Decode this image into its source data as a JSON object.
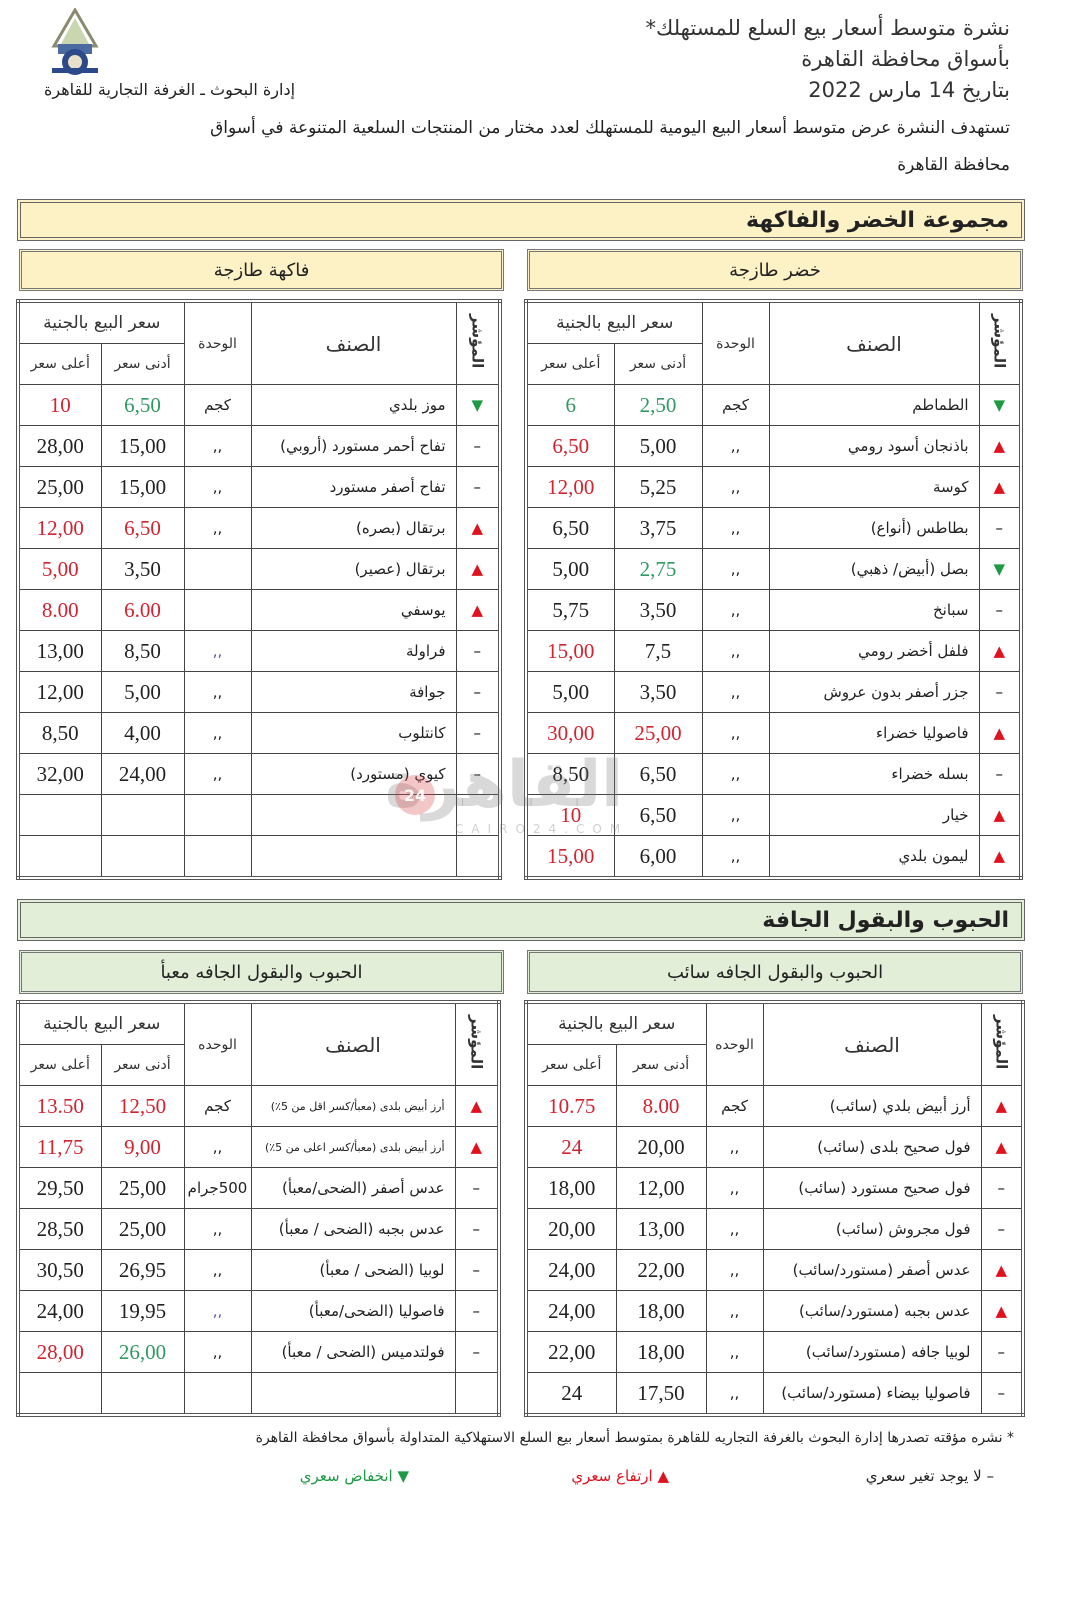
{
  "header": {
    "title_line1": "نشرة متوسط أسعار بيع السلع للمستهلك*",
    "title_line2": "بأسواق محافظة القاهرة",
    "date_line": "بتاريخ 14 مارس 2022",
    "department": "إدارة البحوث ـ الغرفة التجارية للقاهرة",
    "intro_line1": "تستهدف النشرة عرض متوسط أسعار البيع اليومية للمستهلك لعدد مختار من المنتجات السلعية المتنوعة في أسواق",
    "intro_line2": "محافظة القاهرة"
  },
  "colors": {
    "up": "#e0121e",
    "down": "#1e9a44",
    "section1_bg": "#fdf1c6",
    "section2_bg": "#e3eed8"
  },
  "headers": {
    "indicator": "المؤشر",
    "item": "الصنف",
    "unit": "الوحدة",
    "unit_alt": "الوحده",
    "price": "سعر البيع بالجنية",
    "min": "أدنى سعر",
    "max": "أعلى سعر"
  },
  "section1": {
    "title": "مجموعة الخضر والفاكهة",
    "vegetables": {
      "title": "خضر طازجة",
      "rows": [
        {
          "ind": "down",
          "name": "الطماطم",
          "unit": "كجم",
          "min": "2,50",
          "min_c": "green",
          "max": "6",
          "max_c": "green"
        },
        {
          "ind": "up",
          "name": "باذنجان أسود رومي",
          "unit": ",,",
          "min": "5,00",
          "min_c": "black",
          "max": "6,50",
          "max_c": "red"
        },
        {
          "ind": "up",
          "name": "كوسة",
          "unit": ",,",
          "min": "5,25",
          "min_c": "black",
          "max": "12,00",
          "max_c": "red"
        },
        {
          "ind": "none",
          "name": "بطاطس (أنواع)",
          "unit": ",,",
          "min": "3,75",
          "min_c": "black",
          "max": "6,50",
          "max_c": "black"
        },
        {
          "ind": "down",
          "name": "بصل (أبيض/ ذهبي)",
          "unit": ",,",
          "min": "2,75",
          "min_c": "green",
          "max": "5,00",
          "max_c": "black"
        },
        {
          "ind": "none",
          "name": "سبانخ",
          "unit": ",,",
          "min": "3,50",
          "min_c": "black",
          "max": "5,75",
          "max_c": "black"
        },
        {
          "ind": "up",
          "name": "فلفل أخضر رومي",
          "unit": ",,",
          "min": "7,5",
          "min_c": "black",
          "max": "15,00",
          "max_c": "red"
        },
        {
          "ind": "none",
          "name": "جزر أصفر بدون عروش",
          "unit": ",,",
          "min": "3,50",
          "min_c": "black",
          "max": "5,00",
          "max_c": "black"
        },
        {
          "ind": "up",
          "name": "فاصوليا خضراء",
          "unit": ",,",
          "min": "25,00",
          "min_c": "red",
          "max": "30,00",
          "max_c": "red"
        },
        {
          "ind": "none",
          "name": "بسله خضراء",
          "unit": ",,",
          "min": "6,50",
          "min_c": "black",
          "max": "8,50",
          "max_c": "black"
        },
        {
          "ind": "up",
          "name": "خيار",
          "unit": ",,",
          "min": "6,50",
          "min_c": "black",
          "max": "10",
          "max_c": "red"
        },
        {
          "ind": "up",
          "name": "ليمون بلدي",
          "unit": ",,",
          "min": "6,00",
          "min_c": "black",
          "max": "15,00",
          "max_c": "red"
        }
      ]
    },
    "fruits": {
      "title": "فاكهة طازجة",
      "rows": [
        {
          "ind": "down",
          "name": "موز بلدي",
          "unit": "كجم",
          "min": "6,50",
          "min_c": "green",
          "max": "10",
          "max_c": "red"
        },
        {
          "ind": "none",
          "name": "تفاح أحمر مستورد (أروبي)",
          "unit": ",,",
          "min": "15,00",
          "min_c": "black",
          "max": "28,00",
          "max_c": "black"
        },
        {
          "ind": "none",
          "name": "تفاح أصفر مستورد",
          "unit": ",,",
          "min": "15,00",
          "min_c": "black",
          "max": "25,00",
          "max_c": "black"
        },
        {
          "ind": "up",
          "name": "برتقال (بصره)",
          "unit": ",,",
          "min": "6,50",
          "min_c": "red",
          "max": "12,00",
          "max_c": "red"
        },
        {
          "ind": "up",
          "name": "برتقال (عصير)",
          "unit": "",
          "min": "3,50",
          "min_c": "black",
          "max": "5,00",
          "max_c": "red"
        },
        {
          "ind": "up",
          "name": "يوسفي",
          "unit": "",
          "min": "6.00",
          "min_c": "red",
          "max": "8.00",
          "max_c": "red"
        },
        {
          "ind": "none",
          "name": "فراولة",
          "unit": ",,",
          "unit_c": "purple",
          "min": "8,50",
          "min_c": "black",
          "max": "13,00",
          "max_c": "black"
        },
        {
          "ind": "none",
          "name": "جوافة",
          "unit": ",,",
          "min": "5,00",
          "min_c": "black",
          "max": "12,00",
          "max_c": "black"
        },
        {
          "ind": "none",
          "name": "كانتلوب",
          "unit": ",,",
          "min": "4,00",
          "min_c": "black",
          "max": "8,50",
          "max_c": "black"
        },
        {
          "ind": "none",
          "name": "كيوي (مستورد)",
          "unit": ",,",
          "min": "24,00",
          "min_c": "black",
          "max": "32,00",
          "max_c": "black"
        },
        {
          "empty": true
        },
        {
          "empty": true
        }
      ]
    }
  },
  "section2": {
    "title": "الحبوب والبقول الجافة",
    "bulk": {
      "title": "الحبوب والبقول الجافه سائب",
      "rows": [
        {
          "ind": "up",
          "name": "أرز أبيض بلدي (سائب)",
          "unit": "كجم",
          "min": "8.00",
          "min_c": "red",
          "max": "10.75",
          "max_c": "red"
        },
        {
          "ind": "up",
          "name": "فول صحيح بلدى (سائب)",
          "unit": ",,",
          "min": "20,00",
          "min_c": "black",
          "max": "24",
          "max_c": "red"
        },
        {
          "ind": "none",
          "name": "فول صحيح مستورد (سائب)",
          "unit": ",,",
          "min": "12,00",
          "min_c": "black",
          "max": "18,00",
          "max_c": "black"
        },
        {
          "ind": "none",
          "name": "فول مجروش (سائب)",
          "unit": ",,",
          "min": "13,00",
          "min_c": "black",
          "max": "20,00",
          "max_c": "black"
        },
        {
          "ind": "up",
          "name": "عدس أصفر (مستورد/سائب)",
          "unit": ",,",
          "min": "22,00",
          "min_c": "black",
          "max": "24,00",
          "max_c": "black"
        },
        {
          "ind": "up",
          "name": "عدس بجبه (مستورد/سائب)",
          "unit": ",,",
          "min": "18,00",
          "min_c": "black",
          "max": "24,00",
          "max_c": "black"
        },
        {
          "ind": "none",
          "name": "لوبيا جافه (مستورد/سائب)",
          "unit": ",,",
          "min": "18,00",
          "min_c": "black",
          "max": "22,00",
          "max_c": "black"
        },
        {
          "ind": "none",
          "name": "فاصوليا بيضاء (مستورد/سائب)",
          "unit": ",,",
          "min": "17,50",
          "min_c": "black",
          "max": "24",
          "max_c": "black"
        }
      ]
    },
    "packed": {
      "title": "الحبوب والبقول الجافه معبأ",
      "rows": [
        {
          "ind": "up",
          "name": "أرز أبيض بلدى (معبأ/كسر اقل من 5٪)",
          "small": true,
          "unit": "كجم",
          "min": "12,50",
          "min_c": "red",
          "max": "13.50",
          "max_c": "red"
        },
        {
          "ind": "up",
          "name": "أرز أبيض بلدى (معبأ/كسر اعلى من 5٪)",
          "small": true,
          "unit": ",,",
          "min": "9,00",
          "min_c": "red",
          "max": "11,75",
          "max_c": "red"
        },
        {
          "ind": "none",
          "name": "عدس أصفر (الضحى/معبأ)",
          "unit": "500جرام",
          "min": "25,00",
          "min_c": "black",
          "max": "29,50",
          "max_c": "black"
        },
        {
          "ind": "none",
          "name": "عدس بجبه (الضحى / معبأ)",
          "unit": ",,",
          "min": "25,00",
          "min_c": "black",
          "max": "28,50",
          "max_c": "black"
        },
        {
          "ind": "none",
          "name": "لوبيا (الضحى / معبأ)",
          "unit": ",,",
          "min": "26,95",
          "min_c": "black",
          "max": "30,50",
          "max_c": "black"
        },
        {
          "ind": "none",
          "name": "فاصوليا (الضحى/معبأ)",
          "unit": ",,",
          "unit_c": "purple",
          "min": "19,95",
          "min_c": "black",
          "max": "24,00",
          "max_c": "black"
        },
        {
          "ind": "none",
          "name": "فولتدميس (الضحى / معبأ)",
          "unit": ",,",
          "min": "26,00",
          "min_c": "green",
          "max": "28,00",
          "max_c": "red"
        },
        {
          "empty": true
        }
      ]
    }
  },
  "footer": {
    "note": "* نشره مؤقته تصدرها إدارة البحوث بالغرفة التجاريه للقاهرة  بمتوسط أسعار بيع السلع الاستهلاكية المتداولة بأسواق محافظة القاهرة",
    "legend_none": "– لا يوجد تغير سعري",
    "legend_up": "▲ ارتفاع سعري",
    "legend_down": "▼ انخفاض سعري"
  },
  "watermark": {
    "text": "القاهرة",
    "badge": "24",
    "sub": "CAIRO24.COM"
  },
  "logo": {
    "icon": "chamber-of-commerce-logo"
  }
}
